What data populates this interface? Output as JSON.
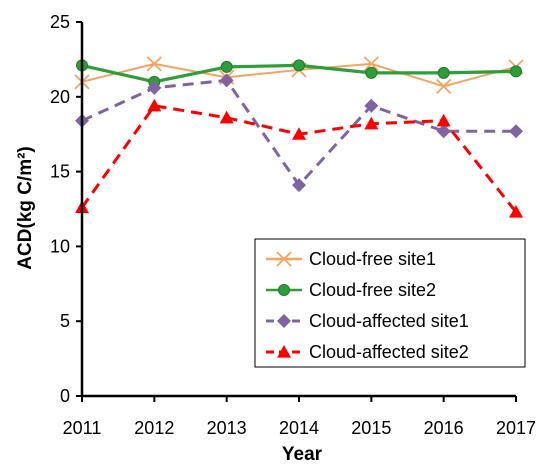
{
  "chart_data": {
    "type": "line",
    "title": "",
    "xlabel": "Year",
    "ylabel": "ACD(kg C/m²)",
    "x": [
      2011,
      2012,
      2013,
      2014,
      2015,
      2016,
      2017
    ],
    "ylim": [
      0,
      25
    ],
    "yticks": [
      0,
      5,
      10,
      15,
      20,
      25
    ],
    "grid": false,
    "legend_position": "bottom-right",
    "series": [
      {
        "name": "Cloud-free site1",
        "values": [
          21.0,
          22.2,
          21.3,
          21.8,
          22.2,
          20.7,
          22.0
        ],
        "color": "#F4A460",
        "marker": "x",
        "dash": "solid"
      },
      {
        "name": "Cloud-free site2",
        "values": [
          22.1,
          21.0,
          22.0,
          22.1,
          21.6,
          21.6,
          21.7
        ],
        "color": "#2E9E3A",
        "marker": "circle",
        "dash": "solid"
      },
      {
        "name": "Cloud-affected site1",
        "values": [
          18.4,
          20.6,
          21.1,
          14.1,
          19.4,
          17.7,
          17.7
        ],
        "color": "#8064A2",
        "marker": "diamond",
        "dash": "dashed"
      },
      {
        "name": "Cloud-affected site2",
        "values": [
          12.6,
          19.4,
          18.6,
          17.5,
          18.2,
          18.4,
          12.3
        ],
        "color": "#FF0000",
        "marker": "triangle",
        "dash": "dashed"
      }
    ]
  }
}
